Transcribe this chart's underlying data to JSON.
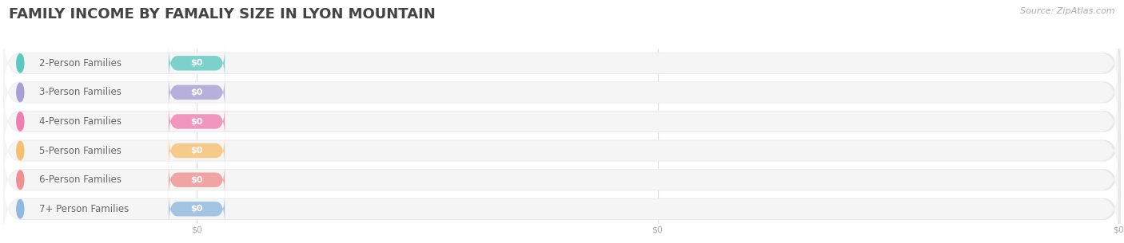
{
  "title": "FAMILY INCOME BY FAMALIY SIZE IN LYON MOUNTAIN",
  "source_text": "Source: ZipAtlas.com",
  "categories": [
    "2-Person Families",
    "3-Person Families",
    "4-Person Families",
    "5-Person Families",
    "6-Person Families",
    "7+ Person Families"
  ],
  "values": [
    0,
    0,
    0,
    0,
    0,
    0
  ],
  "bar_colors": [
    "#5ec8c0",
    "#a89fd4",
    "#f07eb0",
    "#f5c070",
    "#f09090",
    "#90b8e0"
  ],
  "bar_bg_color": "#f0f0f0",
  "bar_row_color": "#f5f5f5",
  "bar_row_shadow_color": "#e8e8e8",
  "title_color": "#444444",
  "label_color": "#666666",
  "value_label_color": "#ffffff",
  "source_color": "#aaaaaa",
  "bg_color": "#ffffff",
  "xlim": [
    0,
    100
  ],
  "title_fontsize": 13,
  "label_fontsize": 8.5,
  "value_fontsize": 8,
  "source_fontsize": 8,
  "tick_fontsize": 8,
  "tick_color": "#aaaaaa",
  "grid_color": "#dddddd"
}
